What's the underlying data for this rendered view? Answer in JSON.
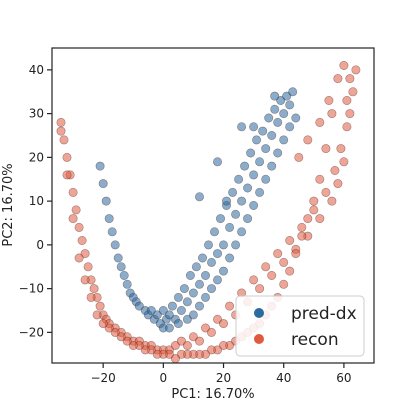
{
  "chart_data": {
    "type": "scatter",
    "title": "",
    "xlabel": "PC1: 16.70%",
    "ylabel": "PC2: 16.70%",
    "xlim": [
      -37,
      70
    ],
    "ylim": [
      -27,
      45
    ],
    "xticks": [
      -20,
      0,
      20,
      40,
      60
    ],
    "yticks": [
      -20,
      -10,
      0,
      10,
      20,
      30,
      40
    ],
    "xtick_labels": [
      "−20",
      "0",
      "20",
      "40",
      "60"
    ],
    "ytick_labels": [
      "−20",
      "−10",
      "0",
      "10",
      "20",
      "30",
      "40"
    ],
    "grid": false,
    "legend": {
      "placement": "bottom-right",
      "entries": [
        "pred-dx",
        "recon"
      ]
    },
    "series": [
      {
        "name": "pred-dx",
        "color": "#2c6aa0",
        "points": [
          [
            -21,
            18
          ],
          [
            -20,
            14
          ],
          [
            -19,
            10
          ],
          [
            -18,
            6
          ],
          [
            -17,
            3
          ],
          [
            -16,
            0
          ],
          [
            -15,
            -3
          ],
          [
            -14,
            -5
          ],
          [
            -13,
            -7
          ],
          [
            -12,
            -9
          ],
          [
            -11,
            -11
          ],
          [
            -10,
            -12
          ],
          [
            -9,
            -13
          ],
          [
            -8,
            -14
          ],
          [
            -6,
            -15
          ],
          [
            -5,
            -16
          ],
          [
            -4,
            -15
          ],
          [
            -3,
            -17
          ],
          [
            -2,
            -16
          ],
          [
            -1,
            -18
          ],
          [
            0,
            -15
          ],
          [
            0,
            -19
          ],
          [
            1,
            -17
          ],
          [
            2,
            -16
          ],
          [
            2,
            -19
          ],
          [
            3,
            -14
          ],
          [
            4,
            -17
          ],
          [
            5,
            -12
          ],
          [
            5,
            -18
          ],
          [
            6,
            -15
          ],
          [
            7,
            -10
          ],
          [
            8,
            -13
          ],
          [
            8,
            -17
          ],
          [
            9,
            -7
          ],
          [
            10,
            -11
          ],
          [
            10,
            -16
          ],
          [
            11,
            -5
          ],
          [
            12,
            -9
          ],
          [
            12,
            -14
          ],
          [
            13,
            -3
          ],
          [
            14,
            -7
          ],
          [
            14,
            -12
          ],
          [
            15,
            0
          ],
          [
            16,
            -4
          ],
          [
            16,
            -10
          ],
          [
            17,
            3
          ],
          [
            18,
            -2
          ],
          [
            18,
            -8
          ],
          [
            19,
            6
          ],
          [
            20,
            0
          ],
          [
            20,
            -6
          ],
          [
            21,
            9
          ],
          [
            22,
            4
          ],
          [
            22,
            -3
          ],
          [
            23,
            12
          ],
          [
            24,
            7
          ],
          [
            24,
            0
          ],
          [
            25,
            15
          ],
          [
            26,
            10
          ],
          [
            26,
            3
          ],
          [
            27,
            18
          ],
          [
            28,
            13
          ],
          [
            28,
            6
          ],
          [
            29,
            21
          ],
          [
            30,
            16
          ],
          [
            30,
            9
          ],
          [
            31,
            24
          ],
          [
            32,
            19
          ],
          [
            32,
            12
          ],
          [
            33,
            26
          ],
          [
            34,
            22
          ],
          [
            34,
            15
          ],
          [
            35,
            29
          ],
          [
            36,
            25
          ],
          [
            36,
            18
          ],
          [
            37,
            31
          ],
          [
            38,
            28
          ],
          [
            38,
            21
          ],
          [
            39,
            33
          ],
          [
            40,
            30
          ],
          [
            40,
            24
          ],
          [
            41,
            34
          ],
          [
            42,
            32
          ],
          [
            42,
            27
          ],
          [
            43,
            35
          ],
          [
            44,
            29
          ],
          [
            12,
            11
          ],
          [
            18,
            19
          ],
          [
            26,
            27
          ],
          [
            21,
            10
          ],
          [
            30,
            27
          ],
          [
            37,
            34
          ]
        ]
      },
      {
        "name": "recon",
        "color": "#e05a3f",
        "points": [
          [
            -34,
            28
          ],
          [
            -33,
            24
          ],
          [
            -32,
            20
          ],
          [
            -31,
            16
          ],
          [
            -30,
            12
          ],
          [
            -29,
            8
          ],
          [
            -28,
            4
          ],
          [
            -27,
            1
          ],
          [
            -26,
            -2
          ],
          [
            -25,
            -5
          ],
          [
            -24,
            -8
          ],
          [
            -23,
            -10
          ],
          [
            -22,
            -12
          ],
          [
            -21,
            -14
          ],
          [
            -20,
            -16
          ],
          [
            -19,
            -17
          ],
          [
            -18,
            -18
          ],
          [
            -16,
            -19
          ],
          [
            -14,
            -20
          ],
          [
            -12,
            -21
          ],
          [
            -10,
            -22
          ],
          [
            -8,
            -22
          ],
          [
            -6,
            -23
          ],
          [
            -4,
            -23
          ],
          [
            -2,
            -24
          ],
          [
            0,
            -24
          ],
          [
            2,
            -24
          ],
          [
            4,
            -23
          ],
          [
            6,
            -22
          ],
          [
            8,
            -23
          ],
          [
            10,
            -21
          ],
          [
            12,
            -22
          ],
          [
            14,
            -19
          ],
          [
            16,
            -20
          ],
          [
            18,
            -17
          ],
          [
            20,
            -18
          ],
          [
            22,
            -14
          ],
          [
            24,
            -16
          ],
          [
            26,
            -11
          ],
          [
            28,
            -13
          ],
          [
            30,
            -8
          ],
          [
            32,
            -10
          ],
          [
            34,
            -5
          ],
          [
            36,
            -7
          ],
          [
            38,
            -2
          ],
          [
            40,
            -4
          ],
          [
            42,
            1
          ],
          [
            44,
            -1
          ],
          [
            46,
            4
          ],
          [
            48,
            2
          ],
          [
            50,
            8
          ],
          [
            52,
            6
          ],
          [
            54,
            12
          ],
          [
            56,
            10
          ],
          [
            57,
            17
          ],
          [
            58,
            14
          ],
          [
            59,
            22
          ],
          [
            60,
            19
          ],
          [
            61,
            27
          ],
          [
            61,
            33
          ],
          [
            62,
            30
          ],
          [
            62,
            38
          ],
          [
            63,
            35
          ],
          [
            64,
            40
          ],
          [
            60,
            41
          ],
          [
            58,
            38
          ],
          [
            56,
            30
          ],
          [
            54,
            22
          ],
          [
            52,
            15
          ],
          [
            50,
            10
          ],
          [
            48,
            6
          ],
          [
            46,
            2
          ],
          [
            44,
            -2
          ],
          [
            42,
            -6
          ],
          [
            40,
            -9
          ],
          [
            38,
            -12
          ],
          [
            36,
            -14
          ],
          [
            34,
            -16
          ],
          [
            32,
            -18
          ],
          [
            30,
            -19
          ],
          [
            28,
            -20
          ],
          [
            26,
            -21
          ],
          [
            24,
            -22
          ],
          [
            22,
            -23
          ],
          [
            20,
            -23
          ],
          [
            18,
            -24
          ],
          [
            16,
            -24
          ],
          [
            14,
            -25
          ],
          [
            12,
            -25
          ],
          [
            10,
            -25
          ],
          [
            8,
            -25
          ],
          [
            6,
            -25
          ],
          [
            4,
            -26
          ],
          [
            2,
            -25
          ],
          [
            0,
            -25
          ],
          [
            -2,
            -25
          ],
          [
            -4,
            -24
          ],
          [
            -6,
            -24
          ],
          [
            -8,
            -23
          ],
          [
            -10,
            -23
          ],
          [
            -12,
            -22
          ],
          [
            -14,
            -21
          ],
          [
            -16,
            -20
          ],
          [
            -18,
            -19
          ],
          [
            -20,
            -18
          ],
          [
            -22,
            -16
          ],
          [
            -24,
            -12
          ],
          [
            -26,
            -8
          ],
          [
            -28,
            -3
          ],
          [
            -30,
            6
          ],
          [
            -32,
            16
          ],
          [
            -34,
            26
          ],
          [
            45,
            20
          ],
          [
            48,
            24
          ],
          [
            52,
            28
          ],
          [
            55,
            33
          ]
        ]
      }
    ]
  }
}
